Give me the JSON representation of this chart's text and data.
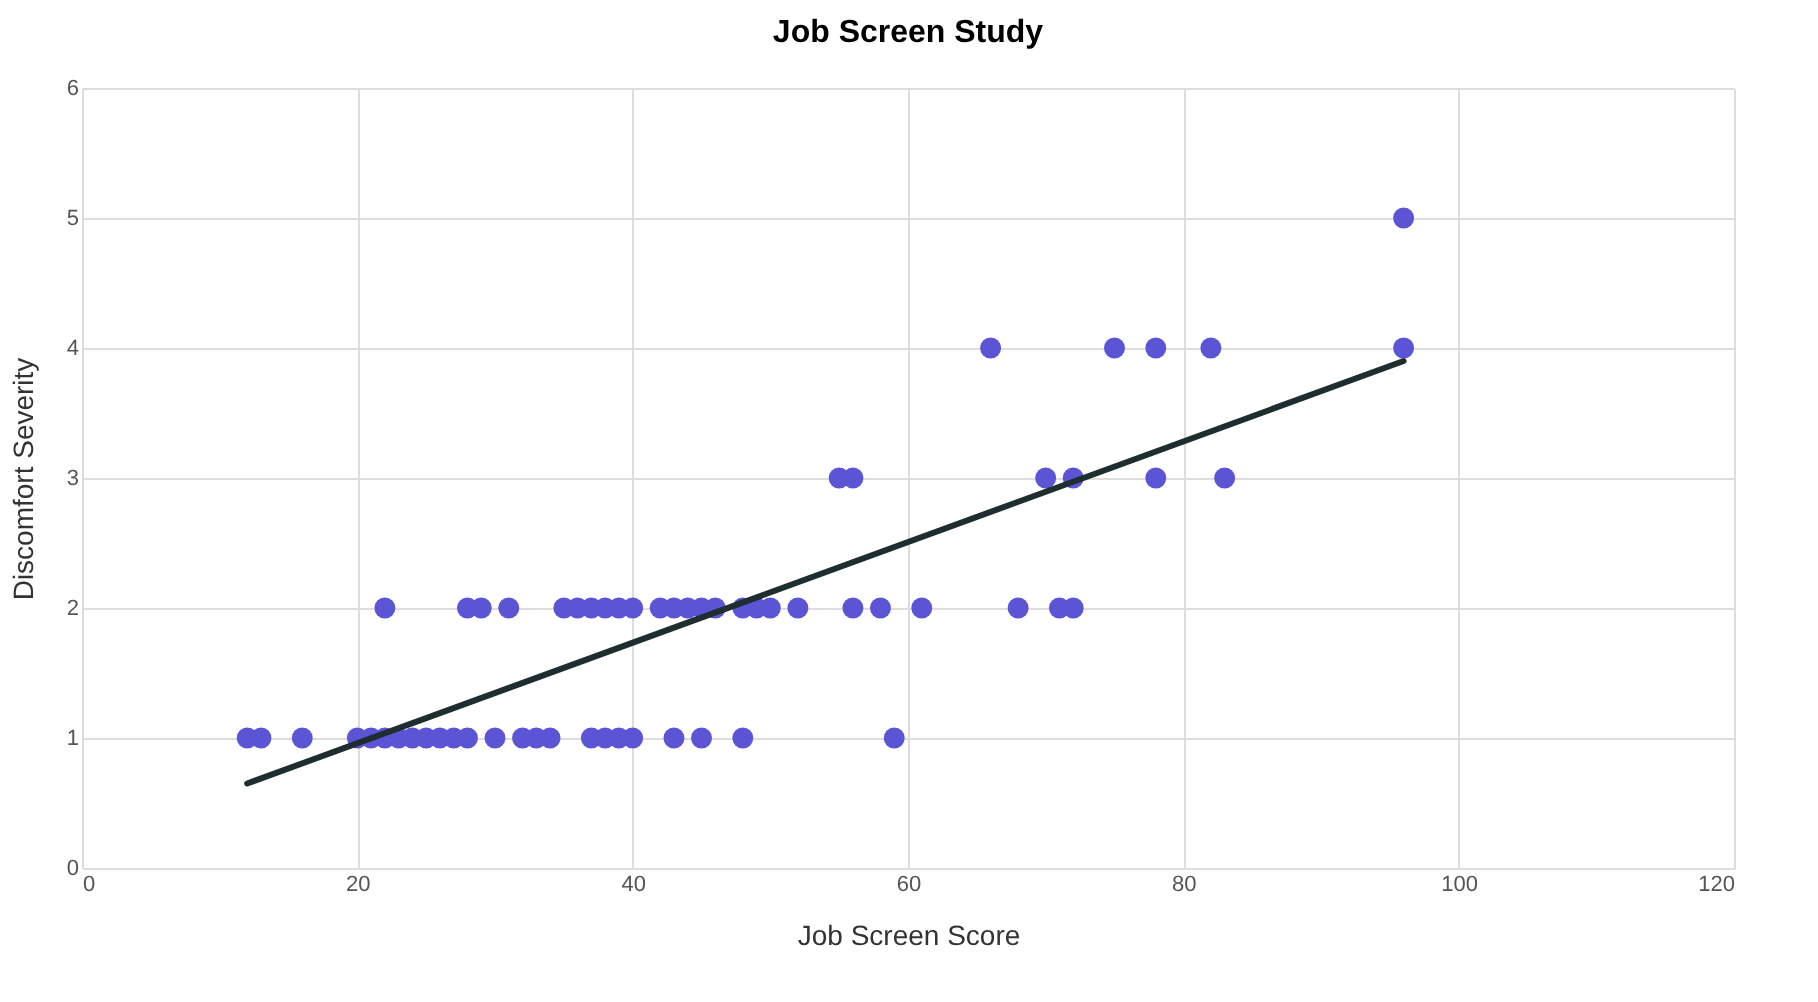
{
  "chart_data": {
    "type": "scatter",
    "title": "Job Screen Study",
    "xlabel": "Job Screen Score",
    "ylabel": "Discomfort Severity",
    "series": [
      {
        "color": "#5b55d6",
        "x": [
          12,
          13,
          16,
          20,
          21,
          22,
          23,
          24,
          25,
          26,
          27,
          28,
          30,
          32,
          33,
          34,
          37,
          38,
          39,
          40,
          43,
          45,
          48,
          59,
          22,
          28,
          29,
          31,
          35,
          36,
          37,
          38,
          39,
          40,
          42,
          43,
          44,
          45,
          46,
          48,
          49,
          50,
          52,
          56,
          58,
          61,
          68,
          71,
          72,
          55,
          56,
          70,
          72,
          78,
          83,
          66,
          75,
          78,
          82,
          96,
          96
        ],
        "values": [
          1,
          1,
          1,
          1,
          1,
          1,
          1,
          1,
          1,
          1,
          1,
          1,
          1,
          1,
          1,
          1,
          1,
          1,
          1,
          1,
          1,
          1,
          1,
          1,
          2,
          2,
          2,
          2,
          2,
          2,
          2,
          2,
          2,
          2,
          2,
          2,
          2,
          2,
          2,
          2,
          2,
          2,
          2,
          2,
          2,
          2,
          2,
          2,
          2,
          3,
          3,
          3,
          3,
          3,
          3,
          4,
          4,
          4,
          4,
          4,
          5
        ]
      },
      {
        "type": "line",
        "marker": "none",
        "color": "#1e2d2f",
        "x": [
          12,
          96
        ],
        "values": [
          0.65,
          3.9
        ]
      }
    ],
    "xlim": [
      0,
      120
    ],
    "xticks": [
      0,
      20,
      40,
      60,
      80,
      100,
      120
    ],
    "ylim": [
      0,
      6
    ],
    "yticks": [
      0,
      1,
      2,
      3,
      4,
      5,
      6
    ],
    "grid": true,
    "legend": false,
    "marker": "circle"
  }
}
